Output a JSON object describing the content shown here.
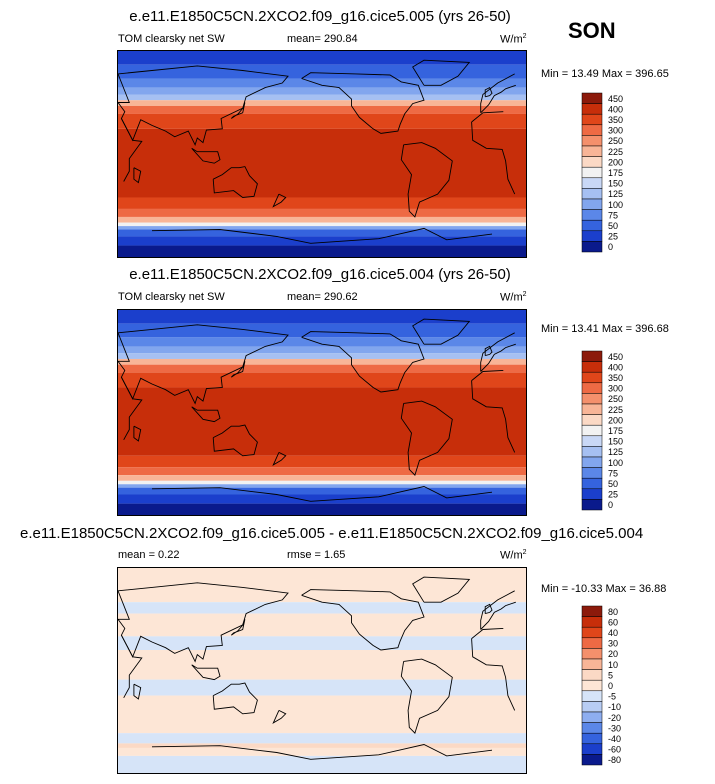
{
  "season": "SON",
  "chart_data": [
    {
      "type": "heatmap",
      "title": "e.e11.E1850C5CN.2XCO2.f09_g16.cice5.005 (yrs 26-50)",
      "left_label": "TOM clearsky net SW",
      "center_label": "mean= 290.84",
      "units": "W/m",
      "units_sup": "2",
      "minmax": "Min = 13.49 Max = 396.65",
      "min": 13.49,
      "max": 396.65,
      "mean": 290.84,
      "levels": [
        "450",
        "400",
        "350",
        "300",
        "250",
        "225",
        "200",
        "175",
        "150",
        "125",
        "100",
        "75",
        "50",
        "25",
        "0"
      ],
      "colors": [
        "#8c1a0b",
        "#c72e0a",
        "#e0461a",
        "#ee6a44",
        "#f4906c",
        "#f8b597",
        "#fbd9c5",
        "#f2f2f2",
        "#c9d8f6",
        "#a6c0f2",
        "#82a6ee",
        "#5b87e8",
        "#3563de",
        "#1b3fcc",
        "#0a1a8c"
      ],
      "lat_bands": [
        {
          "lat": 90,
          "color": "#1b3fcc"
        },
        {
          "lat": 78,
          "color": "#3563de"
        },
        {
          "lat": 66,
          "color": "#5b87e8"
        },
        {
          "lat": 58,
          "color": "#82a6ee"
        },
        {
          "lat": 52,
          "color": "#a6c0f2"
        },
        {
          "lat": 47,
          "color": "#f8b597"
        },
        {
          "lat": 42,
          "color": "#ee6a44"
        },
        {
          "lat": 35,
          "color": "#e0461a"
        },
        {
          "lat": 22,
          "color": "#c72e0a"
        },
        {
          "lat": -38,
          "color": "#e0461a"
        },
        {
          "lat": -48,
          "color": "#ee6a44"
        },
        {
          "lat": -55,
          "color": "#f8b597"
        },
        {
          "lat": -60,
          "color": "#f2f2f2"
        },
        {
          "lat": -63,
          "color": "#82a6ee"
        },
        {
          "lat": -66,
          "color": "#3563de"
        },
        {
          "lat": -72,
          "color": "#1b3fcc"
        },
        {
          "lat": -80,
          "color": "#0a1a8c"
        }
      ]
    },
    {
      "type": "heatmap",
      "title": "e.e11.E1850C5CN.2XCO2.f09_g16.cice5.004 (yrs 26-50)",
      "left_label": "TOM clearsky net SW",
      "center_label": "mean= 290.62",
      "units": "W/m",
      "units_sup": "2",
      "minmax": "Min = 13.41 Max = 396.68",
      "min": 13.41,
      "max": 396.68,
      "mean": 290.62,
      "levels": [
        "450",
        "400",
        "350",
        "300",
        "250",
        "225",
        "200",
        "175",
        "150",
        "125",
        "100",
        "75",
        "50",
        "25",
        "0"
      ],
      "colors": [
        "#8c1a0b",
        "#c72e0a",
        "#e0461a",
        "#ee6a44",
        "#f4906c",
        "#f8b597",
        "#fbd9c5",
        "#f2f2f2",
        "#c9d8f6",
        "#a6c0f2",
        "#82a6ee",
        "#5b87e8",
        "#3563de",
        "#1b3fcc",
        "#0a1a8c"
      ],
      "lat_bands": [
        {
          "lat": 90,
          "color": "#1b3fcc"
        },
        {
          "lat": 78,
          "color": "#3563de"
        },
        {
          "lat": 66,
          "color": "#5b87e8"
        },
        {
          "lat": 58,
          "color": "#82a6ee"
        },
        {
          "lat": 52,
          "color": "#a6c0f2"
        },
        {
          "lat": 47,
          "color": "#f8b597"
        },
        {
          "lat": 42,
          "color": "#ee6a44"
        },
        {
          "lat": 35,
          "color": "#e0461a"
        },
        {
          "lat": 22,
          "color": "#c72e0a"
        },
        {
          "lat": -38,
          "color": "#e0461a"
        },
        {
          "lat": -48,
          "color": "#ee6a44"
        },
        {
          "lat": -55,
          "color": "#f8b597"
        },
        {
          "lat": -60,
          "color": "#f2f2f2"
        },
        {
          "lat": -63,
          "color": "#82a6ee"
        },
        {
          "lat": -66,
          "color": "#3563de"
        },
        {
          "lat": -72,
          "color": "#1b3fcc"
        },
        {
          "lat": -80,
          "color": "#0a1a8c"
        }
      ]
    },
    {
      "type": "heatmap",
      "title": "e.e11.E1850C5CN.2XCO2.f09_g16.cice5.005 - e.e11.E1850C5CN.2XCO2.f09_g16.cice5.004",
      "left_label": "mean =   0.22",
      "center_label": "rmse =   1.65",
      "units": "W/m",
      "units_sup": "2",
      "minmax": "Min = -10.33 Max =  36.88",
      "min": -10.33,
      "max": 36.88,
      "mean": 0.22,
      "rmse": 1.65,
      "levels": [
        "80",
        "60",
        "40",
        "30",
        "20",
        "10",
        "5",
        "0",
        "-5",
        "-10",
        "-20",
        "-30",
        "-40",
        "-60",
        "-80"
      ],
      "colors": [
        "#8c1a0b",
        "#c72e0a",
        "#e0461a",
        "#ee6a44",
        "#f4906c",
        "#f8b597",
        "#fbd9c5",
        "#fde6d6",
        "#d6e4f8",
        "#b8cdf4",
        "#8eaef0",
        "#5b87e8",
        "#3563de",
        "#1b3fcc",
        "#0a1a8c"
      ],
      "lat_bands": [
        {
          "lat": 90,
          "color": "#fde6d6"
        },
        {
          "lat": 60,
          "color": "#d6e4f8"
        },
        {
          "lat": 50,
          "color": "#fde6d6"
        },
        {
          "lat": 30,
          "color": "#d6e4f8"
        },
        {
          "lat": 18,
          "color": "#fde6d6"
        },
        {
          "lat": -8,
          "color": "#d6e4f8"
        },
        {
          "lat": -22,
          "color": "#fde6d6"
        },
        {
          "lat": -55,
          "color": "#d6e4f8"
        },
        {
          "lat": -64,
          "color": "#fbd9c5"
        },
        {
          "lat": -68,
          "color": "#fde6d6"
        },
        {
          "lat": -75,
          "color": "#d6e4f8"
        }
      ]
    }
  ]
}
